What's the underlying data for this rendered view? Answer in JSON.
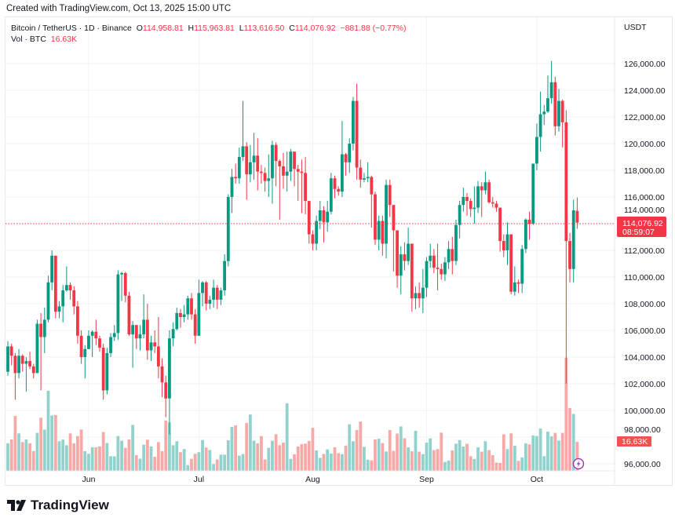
{
  "header": {
    "created": "Created with TradingView.com, Oct 13, 2025 15:00 UTC"
  },
  "legend": {
    "symbol": "Bitcoin / TetherUS · 1D · Binance",
    "open_label": "O",
    "open": "114,958.81",
    "high_label": "H",
    "high": "115,963.81",
    "low_label": "L",
    "low": "113,616.50",
    "close_label": "C",
    "close": "114,076.92",
    "change": "−881.88 (−0.77%)",
    "vol_label": "Vol · BTC",
    "vol_value": "16.63K"
  },
  "price_axis": {
    "currency": "USDT",
    "labels": [
      "126,000.00",
      "124,000.00",
      "122,000.00",
      "120,000.00",
      "118,000.00",
      "116,000.00",
      "114,000.00",
      "112,000.00",
      "110,000.00",
      "108,000.00",
      "106,000.00",
      "104,000.00",
      "102,000.00",
      "100,000.00",
      "98,000.00",
      "96,000.00"
    ],
    "last_price": "114,076.92",
    "countdown": "08:59:07",
    "volume_tag": "16.63K"
  },
  "time_axis": {
    "labels": [
      "Jun",
      "Jul",
      "Aug",
      "Sep",
      "Oct"
    ]
  },
  "footer": {
    "brand": "TradingView"
  },
  "colors": {
    "up": "#089981",
    "down": "#f23645",
    "up_volume": "#92d2cc",
    "down_volume": "#f7a9a7",
    "accent_icon": "#9c27b0"
  },
  "chart_data": {
    "type": "candlestick",
    "interval": "1D",
    "y_range": [
      96000,
      126000
    ],
    "ohlc_columns": [
      "open",
      "high",
      "low",
      "close"
    ],
    "ohlc": [
      [
        102900,
        105200,
        102600,
        104800
      ],
      [
        104800,
        105000,
        103400,
        104100
      ],
      [
        104100,
        104300,
        100800,
        102800
      ],
      [
        102800,
        104600,
        102400,
        104100
      ],
      [
        104100,
        104200,
        102900,
        103500
      ],
      [
        103500,
        104000,
        101400,
        103700
      ],
      [
        103700,
        104400,
        103100,
        103300
      ],
      [
        103300,
        103500,
        102400,
        102800
      ],
      [
        102800,
        106800,
        102800,
        106500
      ],
      [
        106500,
        107300,
        101500,
        105500
      ],
      [
        105500,
        107700,
        104300,
        106800
      ],
      [
        106800,
        110100,
        106600,
        109600
      ],
      [
        109600,
        112000,
        109000,
        111600
      ],
      [
        111600,
        111600,
        106900,
        107400
      ],
      [
        107400,
        108200,
        106900,
        107800
      ],
      [
        107800,
        109400,
        106600,
        109000
      ],
      [
        109000,
        110800,
        108900,
        109400
      ],
      [
        109400,
        109600,
        108300,
        109000
      ],
      [
        109000,
        109300,
        107200,
        107800
      ],
      [
        107800,
        108200,
        105000,
        105600
      ],
      [
        105600,
        106000,
        103500,
        104000
      ],
      [
        104000,
        104900,
        102400,
        104600
      ],
      [
        104600,
        106000,
        104600,
        105600
      ],
      [
        105600,
        106000,
        104000,
        105900
      ],
      [
        105900,
        106800,
        104900,
        105400
      ],
      [
        105400,
        105600,
        104400,
        104700
      ],
      [
        104700,
        105000,
        100800,
        101500
      ],
      [
        101500,
        104700,
        101200,
        104300
      ],
      [
        104300,
        105800,
        104000,
        105500
      ],
      [
        105500,
        106400,
        105200,
        105800
      ],
      [
        105800,
        110500,
        105300,
        110200
      ],
      [
        110200,
        110400,
        108200,
        110300
      ],
      [
        110300,
        110400,
        108100,
        108600
      ],
      [
        108600,
        108900,
        105600,
        105700
      ],
      [
        105700,
        106700,
        103200,
        106400
      ],
      [
        106400,
        106400,
        104600,
        105400
      ],
      [
        105400,
        106400,
        104500,
        105700
      ],
      [
        105700,
        108700,
        105400,
        106800
      ],
      [
        106800,
        108000,
        103800,
        104500
      ],
      [
        104500,
        105600,
        103700,
        105100
      ],
      [
        105100,
        106000,
        104300,
        104800
      ],
      [
        104800,
        107000,
        102400,
        103300
      ],
      [
        103300,
        103900,
        101000,
        102100
      ],
      [
        102100,
        102600,
        99500,
        100900
      ],
      [
        100900,
        106000,
        98200,
        105400
      ],
      [
        105400,
        106600,
        104800,
        106100
      ],
      [
        106100,
        107700,
        106000,
        107300
      ],
      [
        107300,
        107600,
        106200,
        107000
      ],
      [
        107000,
        107900,
        106600,
        107200
      ],
      [
        107200,
        108600,
        106800,
        108400
      ],
      [
        108400,
        108800,
        106800,
        107200
      ],
      [
        107200,
        107600,
        105000,
        105600
      ],
      [
        105600,
        109800,
        105600,
        108800
      ],
      [
        108800,
        109700,
        107800,
        109600
      ],
      [
        109600,
        109700,
        107500,
        108000
      ],
      [
        108000,
        108600,
        107600,
        108300
      ],
      [
        108300,
        109800,
        107700,
        109200
      ],
      [
        109200,
        109400,
        107600,
        108300
      ],
      [
        108300,
        109200,
        107900,
        109000
      ],
      [
        109000,
        111700,
        108600,
        111200
      ],
      [
        111200,
        116200,
        110800,
        116000
      ],
      [
        116000,
        118100,
        114800,
        117500
      ],
      [
        117500,
        118500,
        117000,
        117400
      ],
      [
        117400,
        119700,
        117000,
        119000
      ],
      [
        119000,
        123200,
        118700,
        119800
      ],
      [
        119800,
        120100,
        115800,
        117700
      ],
      [
        117700,
        119900,
        117100,
        118600
      ],
      [
        118600,
        120800,
        117300,
        119100
      ],
      [
        119100,
        120400,
        116500,
        117900
      ],
      [
        117900,
        118400,
        117000,
        117800
      ],
      [
        117800,
        118200,
        116400,
        117200
      ],
      [
        117200,
        119200,
        116000,
        117400
      ],
      [
        117400,
        120200,
        115500,
        119900
      ],
      [
        119900,
        120100,
        116800,
        118700
      ],
      [
        118700,
        118800,
        114300,
        118300
      ],
      [
        118300,
        119300,
        116600,
        117600
      ],
      [
        117600,
        119400,
        116400,
        117900
      ],
      [
        117900,
        119600,
        117200,
        119400
      ],
      [
        119400,
        119400,
        116800,
        118100
      ],
      [
        118100,
        118400,
        115700,
        117900
      ],
      [
        117900,
        118800,
        114800,
        117800
      ],
      [
        117800,
        119000,
        114700,
        115700
      ],
      [
        115700,
        115700,
        112500,
        113200
      ],
      [
        113200,
        113500,
        112000,
        112500
      ],
      [
        112500,
        114600,
        112000,
        114200
      ],
      [
        114200,
        115700,
        113600,
        115000
      ],
      [
        115000,
        115300,
        112600,
        114100
      ],
      [
        114100,
        115700,
        113400,
        114900
      ],
      [
        114900,
        117800,
        114700,
        117400
      ],
      [
        117400,
        117600,
        115900,
        116600
      ],
      [
        116600,
        116800,
        116100,
        116400
      ],
      [
        116400,
        121700,
        116000,
        119200
      ],
      [
        119200,
        119300,
        117600,
        118600
      ],
      [
        118600,
        120400,
        117800,
        120000
      ],
      [
        120000,
        123500,
        119500,
        123200
      ],
      [
        123200,
        124500,
        117300,
        118200
      ],
      [
        118200,
        118800,
        116700,
        117300
      ],
      [
        117300,
        117800,
        117100,
        117400
      ],
      [
        117400,
        118600,
        117100,
        117500
      ],
      [
        117500,
        117600,
        113700,
        116200
      ],
      [
        116200,
        116400,
        112400,
        112800
      ],
      [
        112800,
        114600,
        112000,
        114200
      ],
      [
        114200,
        114600,
        111600,
        112500
      ],
      [
        112500,
        117300,
        111400,
        116900
      ],
      [
        116900,
        117300,
        114500,
        115400
      ],
      [
        115400,
        115400,
        110400,
        113500
      ],
      [
        113500,
        113500,
        109200,
        110100
      ],
      [
        110100,
        112300,
        108700,
        111700
      ],
      [
        111700,
        112600,
        110500,
        111200
      ],
      [
        111200,
        113700,
        110900,
        112500
      ],
      [
        112500,
        112500,
        107400,
        108400
      ],
      [
        108400,
        109300,
        107600,
        108800
      ],
      [
        108800,
        109600,
        107700,
        108400
      ],
      [
        108400,
        110600,
        107300,
        109200
      ],
      [
        109200,
        111500,
        108500,
        111200
      ],
      [
        111200,
        112500,
        110700,
        111600
      ],
      [
        111600,
        112100,
        110300,
        110700
      ],
      [
        110700,
        112500,
        109000,
        110600
      ],
      [
        110600,
        111000,
        109800,
        110200
      ],
      [
        110200,
        111500,
        109700,
        111100
      ],
      [
        111100,
        112700,
        110600,
        112100
      ],
      [
        112100,
        113000,
        110200,
        111200
      ],
      [
        111200,
        114300,
        110900,
        113900
      ],
      [
        113900,
        115700,
        112900,
        115400
      ],
      [
        115400,
        116700,
        114900,
        116000
      ],
      [
        116000,
        116300,
        114600,
        115700
      ],
      [
        115700,
        115900,
        114500,
        115100
      ],
      [
        115100,
        116800,
        114000,
        115200
      ],
      [
        115200,
        117200,
        114800,
        116800
      ],
      [
        116800,
        117100,
        114500,
        116500
      ],
      [
        116500,
        117900,
        116200,
        117100
      ],
      [
        117100,
        117300,
        115500,
        115600
      ],
      [
        115600,
        116000,
        115200,
        115500
      ],
      [
        115500,
        115700,
        114900,
        115200
      ],
      [
        115200,
        115200,
        111900,
        112700
      ],
      [
        112700,
        113200,
        111500,
        112000
      ],
      [
        112000,
        114100,
        110900,
        113200
      ],
      [
        113200,
        113200,
        108700,
        108900
      ],
      [
        108900,
        110800,
        108600,
        109600
      ],
      [
        109600,
        109800,
        108800,
        109500
      ],
      [
        109500,
        112400,
        108800,
        112100
      ],
      [
        112100,
        114400,
        111800,
        114300
      ],
      [
        114300,
        114900,
        112800,
        114000
      ],
      [
        114000,
        118500,
        113900,
        118500
      ],
      [
        118500,
        121500,
        118000,
        120500
      ],
      [
        120500,
        123900,
        119400,
        122200
      ],
      [
        122200,
        122900,
        121400,
        122400
      ],
      [
        122400,
        125100,
        122300,
        123400
      ],
      [
        123400,
        126200,
        123000,
        124600
      ],
      [
        124600,
        125000,
        120600,
        121300
      ],
      [
        121300,
        124100,
        120900,
        123200
      ],
      [
        123200,
        123300,
        119700,
        121600
      ],
      [
        121600,
        122500,
        102000,
        112700
      ],
      [
        112700,
        113300,
        109600,
        110600
      ],
      [
        110600,
        115800,
        109600,
        115000
      ],
      [
        114958.81,
        115963.81,
        113616.5,
        114076.92
      ]
    ],
    "volume_unit": "K BTC",
    "volume": [
      15.8,
      18,
      31.5,
      21.5,
      16.5,
      18,
      15.8,
      11.3,
      21.8,
      30.5,
      23.7,
      46,
      31.8,
      32,
      17,
      17.9,
      14.7,
      21.5,
      15.8,
      20,
      23.7,
      11.3,
      9.8,
      13.5,
      13.5,
      14,
      22.3,
      16,
      8.4,
      8.3,
      20,
      17.3,
      13.2,
      18,
      26.4,
      9,
      7,
      15,
      17.9,
      14,
      8.1,
      16.5,
      11.3,
      28.8,
      27.8,
      14.7,
      17,
      10.7,
      12.5,
      3.3,
      6.9,
      9.8,
      10.7,
      17.7,
      13.4,
      11.9,
      3.9,
      6.5,
      9.3,
      9.3,
      17.6,
      25.2,
      26.1,
      8.7,
      9.6,
      27.5,
      32.3,
      17.3,
      15.8,
      20,
      6.6,
      13.2,
      17.3,
      21,
      14.7,
      16.2,
      38.7,
      6.9,
      9.5,
      14,
      15.3,
      15.6,
      17.2,
      24.7,
      11.7,
      7.5,
      9.7,
      12.3,
      10,
      13.5,
      10.2,
      9.6,
      14.5,
      26.7,
      17,
      23.4,
      28.3,
      13.8,
      6.4,
      6,
      18,
      18.5,
      15.9,
      11.1,
      23.4,
      11.5,
      21.4,
      25.5,
      18.7,
      13.5,
      11.2,
      23,
      11,
      9.6,
      16.2,
      18.7,
      11.9,
      12.5,
      21.9,
      5.1,
      5.9,
      11.7,
      15.6,
      17.7,
      14,
      15.5,
      8.4,
      6.9,
      13.5,
      11,
      17,
      11.9,
      9,
      4.7,
      4.5,
      21,
      12.5,
      21.5,
      14.4,
      5.7,
      7.7,
      15.8,
      15.2,
      20.3,
      20,
      24.3,
      8.4,
      22.5,
      19.8,
      21.8,
      17.4,
      21.8,
      65,
      36,
      32.7,
      16.63
    ]
  }
}
